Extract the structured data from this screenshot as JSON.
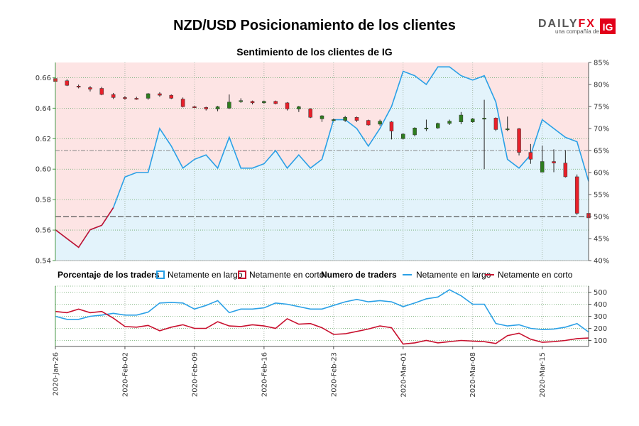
{
  "header": {
    "title": "NZD/USD Posicionamiento de los clientes",
    "subtitle": "Sentimiento de los clientes de IG"
  },
  "brand": {
    "name": "DAILY",
    "fx": "FX",
    "tagline": "una compañía de",
    "logo_text": "IG",
    "logo_color": "#e2001a",
    "fx_color": "#e2001a"
  },
  "colors": {
    "long": "#2aa0e6",
    "short": "#c8102e",
    "candle_up": "#2e7d1e",
    "candle_down": "#e8202a",
    "bg_short": "#fde4e4",
    "bg_long": "#e3f3fb",
    "grid": "#9aab9a",
    "axis": "#4a9a4a",
    "ref_line": "#888888",
    "ref_line_50": "#555555"
  },
  "legend": {
    "pct_header": "Porcentaje de los traders",
    "pct_long": "Netamente en largo",
    "pct_short": "Netamente en corto",
    "num_header": "Numero de traders",
    "num_long": "Netamente en largo",
    "num_short": "Netamente en corto"
  },
  "chart_data": {
    "type": "line",
    "x": [
      "2020-Jan-26",
      "2020-Jan-27",
      "2020-Jan-28",
      "2020-Jan-29",
      "2020-Jan-30",
      "2020-Jan-31",
      "2020-Feb-02",
      "2020-Feb-03",
      "2020-Feb-04",
      "2020-Feb-05",
      "2020-Feb-06",
      "2020-Feb-07",
      "2020-Feb-09",
      "2020-Feb-10",
      "2020-Feb-11",
      "2020-Feb-12",
      "2020-Feb-13",
      "2020-Feb-14",
      "2020-Feb-16",
      "2020-Feb-17",
      "2020-Feb-18",
      "2020-Feb-19",
      "2020-Feb-20",
      "2020-Feb-21",
      "2020-Feb-23",
      "2020-Feb-24",
      "2020-Feb-25",
      "2020-Feb-26",
      "2020-Feb-27",
      "2020-Feb-28",
      "2020-Mar-01",
      "2020-Mar-02",
      "2020-Mar-03",
      "2020-Mar-04",
      "2020-Mar-05",
      "2020-Mar-06",
      "2020-Mar-08",
      "2020-Mar-09",
      "2020-Mar-10",
      "2020-Mar-11",
      "2020-Mar-12",
      "2020-Mar-13",
      "2020-Mar-15",
      "2020-Mar-16",
      "2020-Mar-17",
      "2020-Mar-18",
      "2020-Mar-19"
    ],
    "x_tick_labels": [
      "2020-Jan-26",
      "2020-Feb-02",
      "2020-Feb-09",
      "2020-Feb-16",
      "2020-Feb-23",
      "2020-Mar-01",
      "2020-Mar-08",
      "2020-Mar-15"
    ],
    "price": {
      "ylim": [
        0.54,
        0.67
      ],
      "yticks": [
        0.54,
        0.56,
        0.58,
        0.6,
        0.62,
        0.64,
        0.66
      ],
      "ytick_labels": [
        "0.54",
        "0.56",
        "0.58",
        "0.60",
        "0.62",
        "0.64",
        "0.66"
      ],
      "candles": [
        {
          "t": "2020-Jan-26",
          "o": 0.6595,
          "h": 0.6605,
          "l": 0.657,
          "c": 0.6575
        },
        {
          "t": "2020-Jan-27",
          "o": 0.658,
          "h": 0.659,
          "l": 0.6545,
          "c": 0.655
        },
        {
          "t": "2020-Jan-28",
          "o": 0.6545,
          "h": 0.6555,
          "l": 0.653,
          "c": 0.654
        },
        {
          "t": "2020-Jan-29",
          "o": 0.6535,
          "h": 0.6545,
          "l": 0.651,
          "c": 0.6525
        },
        {
          "t": "2020-Jan-30",
          "o": 0.653,
          "h": 0.654,
          "l": 0.6485,
          "c": 0.649
        },
        {
          "t": "2020-Jan-31",
          "o": 0.649,
          "h": 0.65,
          "l": 0.646,
          "c": 0.647
        },
        {
          "t": "2020-Feb-02",
          "o": 0.647,
          "h": 0.648,
          "l": 0.6455,
          "c": 0.6465
        },
        {
          "t": "2020-Feb-03",
          "o": 0.6465,
          "h": 0.6475,
          "l": 0.6455,
          "c": 0.646
        },
        {
          "t": "2020-Feb-04",
          "o": 0.6465,
          "h": 0.65,
          "l": 0.6455,
          "c": 0.6495
        },
        {
          "t": "2020-Feb-05",
          "o": 0.6495,
          "h": 0.6505,
          "l": 0.6475,
          "c": 0.6485
        },
        {
          "t": "2020-Feb-06",
          "o": 0.6485,
          "h": 0.649,
          "l": 0.646,
          "c": 0.6465
        },
        {
          "t": "2020-Feb-07",
          "o": 0.646,
          "h": 0.647,
          "l": 0.6405,
          "c": 0.641
        },
        {
          "t": "2020-Feb-09",
          "o": 0.641,
          "h": 0.6415,
          "l": 0.64,
          "c": 0.6405
        },
        {
          "t": "2020-Feb-10",
          "o": 0.6405,
          "h": 0.641,
          "l": 0.6385,
          "c": 0.6395
        },
        {
          "t": "2020-Feb-11",
          "o": 0.6395,
          "h": 0.6415,
          "l": 0.638,
          "c": 0.641
        },
        {
          "t": "2020-Feb-12",
          "o": 0.64,
          "h": 0.649,
          "l": 0.6395,
          "c": 0.644
        },
        {
          "t": "2020-Feb-13",
          "o": 0.6445,
          "h": 0.6465,
          "l": 0.6435,
          "c": 0.645
        },
        {
          "t": "2020-Feb-14",
          "o": 0.6445,
          "h": 0.645,
          "l": 0.6425,
          "c": 0.6435
        },
        {
          "t": "2020-Feb-16",
          "o": 0.6435,
          "h": 0.645,
          "l": 0.643,
          "c": 0.6445
        },
        {
          "t": "2020-Feb-17",
          "o": 0.6445,
          "h": 0.645,
          "l": 0.6425,
          "c": 0.643
        },
        {
          "t": "2020-Feb-18",
          "o": 0.6435,
          "h": 0.644,
          "l": 0.6385,
          "c": 0.6395
        },
        {
          "t": "2020-Feb-19",
          "o": 0.6395,
          "h": 0.6415,
          "l": 0.6375,
          "c": 0.641
        },
        {
          "t": "2020-Feb-20",
          "o": 0.6395,
          "h": 0.64,
          "l": 0.6335,
          "c": 0.634
        },
        {
          "t": "2020-Feb-21",
          "o": 0.633,
          "h": 0.6355,
          "l": 0.631,
          "c": 0.635
        },
        {
          "t": "2020-Feb-23",
          "o": 0.632,
          "h": 0.633,
          "l": 0.6315,
          "c": 0.6325
        },
        {
          "t": "2020-Feb-24",
          "o": 0.632,
          "h": 0.635,
          "l": 0.631,
          "c": 0.634
        },
        {
          "t": "2020-Feb-25",
          "o": 0.634,
          "h": 0.6345,
          "l": 0.631,
          "c": 0.632
        },
        {
          "t": "2020-Feb-26",
          "o": 0.632,
          "h": 0.6325,
          "l": 0.6285,
          "c": 0.629
        },
        {
          "t": "2020-Feb-27",
          "o": 0.6295,
          "h": 0.6325,
          "l": 0.6285,
          "c": 0.6315
        },
        {
          "t": "2020-Feb-28",
          "o": 0.631,
          "h": 0.6315,
          "l": 0.6195,
          "c": 0.625
        },
        {
          "t": "2020-Mar-01",
          "o": 0.62,
          "h": 0.6235,
          "l": 0.6195,
          "c": 0.623
        },
        {
          "t": "2020-Mar-02",
          "o": 0.6225,
          "h": 0.6275,
          "l": 0.6215,
          "c": 0.627
        },
        {
          "t": "2020-Mar-03",
          "o": 0.6265,
          "h": 0.6325,
          "l": 0.625,
          "c": 0.627
        },
        {
          "t": "2020-Mar-04",
          "o": 0.627,
          "h": 0.6305,
          "l": 0.6265,
          "c": 0.63
        },
        {
          "t": "2020-Mar-05",
          "o": 0.63,
          "h": 0.6325,
          "l": 0.629,
          "c": 0.6315
        },
        {
          "t": "2020-Mar-06",
          "o": 0.631,
          "h": 0.6375,
          "l": 0.6295,
          "c": 0.6355
        },
        {
          "t": "2020-Mar-08",
          "o": 0.631,
          "h": 0.6335,
          "l": 0.6305,
          "c": 0.633
        },
        {
          "t": "2020-Mar-09",
          "o": 0.633,
          "h": 0.6455,
          "l": 0.6,
          "c": 0.6335
        },
        {
          "t": "2020-Mar-10",
          "o": 0.6335,
          "h": 0.634,
          "l": 0.625,
          "c": 0.626
        },
        {
          "t": "2020-Mar-11",
          "o": 0.626,
          "h": 0.6345,
          "l": 0.625,
          "c": 0.6265
        },
        {
          "t": "2020-Mar-12",
          "o": 0.6265,
          "h": 0.627,
          "l": 0.609,
          "c": 0.611
        },
        {
          "t": "2020-Mar-13",
          "o": 0.611,
          "h": 0.6165,
          "l": 0.6035,
          "c": 0.6065
        },
        {
          "t": "2020-Mar-15",
          "o": 0.598,
          "h": 0.6155,
          "l": 0.598,
          "c": 0.605
        },
        {
          "t": "2020-Mar-16",
          "o": 0.605,
          "h": 0.613,
          "l": 0.598,
          "c": 0.604
        },
        {
          "t": "2020-Mar-17",
          "o": 0.604,
          "h": 0.6125,
          "l": 0.5945,
          "c": 0.595
        },
        {
          "t": "2020-Mar-18",
          "o": 0.595,
          "h": 0.5965,
          "l": 0.57,
          "c": 0.571
        },
        {
          "t": "2020-Mar-19",
          "o": 0.571,
          "h": 0.573,
          "l": 0.547,
          "c": 0.568
        }
      ]
    },
    "long_pct": {
      "ylim": [
        40,
        85
      ],
      "yticks": [
        40,
        45,
        50,
        55,
        60,
        65,
        70,
        75,
        80,
        85
      ],
      "ytick_labels": [
        "40%",
        "45%",
        "50%",
        "55%",
        "60%",
        "65%",
        "70%",
        "75%",
        "80%",
        "85%"
      ],
      "values": [
        47,
        45,
        43,
        47,
        48,
        52,
        59,
        60,
        60,
        70,
        66,
        61,
        63,
        64,
        61,
        68,
        61,
        61,
        62,
        65,
        61,
        64,
        61,
        63,
        72,
        72,
        70,
        66,
        70,
        75,
        83,
        82,
        80,
        84,
        84,
        82,
        81,
        82,
        76,
        63,
        61,
        64,
        72,
        70,
        68,
        67,
        58
      ]
    },
    "ref_levels_pct": [
      50,
      65
    ],
    "traders": {
      "ylim": [
        50,
        550
      ],
      "yticks": [
        100,
        200,
        300,
        400,
        500
      ],
      "ytick_labels": [
        "100",
        "200",
        "300",
        "400",
        "500"
      ],
      "long": [
        300,
        275,
        275,
        300,
        310,
        325,
        310,
        310,
        335,
        410,
        415,
        410,
        360,
        390,
        430,
        330,
        360,
        360,
        370,
        410,
        400,
        380,
        360,
        360,
        390,
        420,
        440,
        420,
        430,
        420,
        380,
        410,
        445,
        460,
        520,
        470,
        400,
        400,
        240,
        220,
        230,
        200,
        190,
        195,
        210,
        240,
        170
      ],
      "short": [
        340,
        330,
        360,
        330,
        340,
        285,
        215,
        210,
        225,
        180,
        210,
        230,
        200,
        200,
        255,
        220,
        215,
        230,
        220,
        200,
        280,
        235,
        240,
        205,
        150,
        155,
        175,
        195,
        220,
        205,
        70,
        80,
        100,
        80,
        90,
        100,
        95,
        90,
        75,
        140,
        160,
        110,
        85,
        90,
        100,
        115,
        120
      ]
    }
  }
}
